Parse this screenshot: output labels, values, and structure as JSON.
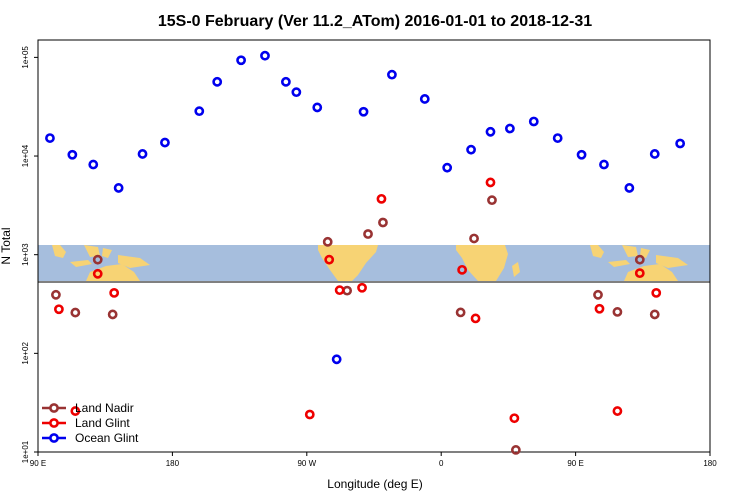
{
  "chart_data": {
    "type": "scatter",
    "title": "15S-0 February (Ver 11.2_ATom)   2016-01-01 to 2018-12-31",
    "xlabel": "Longitude (deg E)",
    "ylabel": "N Total",
    "x_ticks": [
      {
        "value": 90,
        "label": "90 E"
      },
      {
        "value": 180,
        "label": "180"
      },
      {
        "value": 270,
        "label": "90 W"
      },
      {
        "value": 360,
        "label": "0"
      },
      {
        "value": 450,
        "label": "90 E"
      },
      {
        "value": 540,
        "label": "180"
      }
    ],
    "y_ticks": [
      {
        "value": 10,
        "label": "1e+01"
      },
      {
        "value": 100,
        "label": "1e+02"
      },
      {
        "value": 1000,
        "label": "1e+03"
      },
      {
        "value": 10000,
        "label": "1e+04"
      },
      {
        "value": 100000,
        "label": "1e+05"
      }
    ],
    "xlim": [
      90,
      540
    ],
    "ylim": [
      10,
      150000
    ],
    "y_scale": "log",
    "legend_position": "bottom-left",
    "series": [
      {
        "name": "Land Nadir",
        "color": "#993333",
        "points": [
          {
            "x": 102,
            "y": 392
          },
          {
            "x": 115,
            "y": 259
          },
          {
            "x": 130,
            "y": 890
          },
          {
            "x": 140,
            "y": 248
          },
          {
            "x": 284,
            "y": 1350
          },
          {
            "x": 297,
            "y": 432
          },
          {
            "x": 311,
            "y": 1620
          },
          {
            "x": 321,
            "y": 2120
          },
          {
            "x": 373,
            "y": 260
          },
          {
            "x": 382,
            "y": 1460
          },
          {
            "x": 394,
            "y": 3570
          },
          {
            "x": 410,
            "y": 10.5
          },
          {
            "x": 465,
            "y": 392
          },
          {
            "x": 478,
            "y": 263
          },
          {
            "x": 493,
            "y": 890
          },
          {
            "x": 503,
            "y": 248
          }
        ]
      },
      {
        "name": "Land Glint",
        "color": "#ee0000",
        "points": [
          {
            "x": 104,
            "y": 280
          },
          {
            "x": 115,
            "y": 26
          },
          {
            "x": 130,
            "y": 640
          },
          {
            "x": 141,
            "y": 410
          },
          {
            "x": 272,
            "y": 24
          },
          {
            "x": 285,
            "y": 890
          },
          {
            "x": 292,
            "y": 437
          },
          {
            "x": 307,
            "y": 462
          },
          {
            "x": 320,
            "y": 3680
          },
          {
            "x": 374,
            "y": 702
          },
          {
            "x": 393,
            "y": 5400
          },
          {
            "x": 383,
            "y": 226
          },
          {
            "x": 409,
            "y": 22
          },
          {
            "x": 466,
            "y": 283
          },
          {
            "x": 478,
            "y": 26
          },
          {
            "x": 493,
            "y": 650
          },
          {
            "x": 504,
            "y": 410
          }
        ]
      },
      {
        "name": "Ocean Glint",
        "color": "#0000ee",
        "points": [
          {
            "x": 98,
            "y": 15200
          },
          {
            "x": 113,
            "y": 10300
          },
          {
            "x": 127,
            "y": 8200
          },
          {
            "x": 144,
            "y": 4750
          },
          {
            "x": 160,
            "y": 10500
          },
          {
            "x": 175,
            "y": 13700
          },
          {
            "x": 198,
            "y": 28500
          },
          {
            "x": 210,
            "y": 56500
          },
          {
            "x": 226,
            "y": 93500
          },
          {
            "x": 242,
            "y": 104000
          },
          {
            "x": 256,
            "y": 56500
          },
          {
            "x": 263,
            "y": 44400
          },
          {
            "x": 277,
            "y": 31100
          },
          {
            "x": 290,
            "y": 87
          },
          {
            "x": 308,
            "y": 28100
          },
          {
            "x": 327,
            "y": 66800
          },
          {
            "x": 349,
            "y": 37900
          },
          {
            "x": 364,
            "y": 7620
          },
          {
            "x": 380,
            "y": 11600
          },
          {
            "x": 393,
            "y": 17600
          },
          {
            "x": 406,
            "y": 19000
          },
          {
            "x": 422,
            "y": 22400
          },
          {
            "x": 438,
            "y": 15200
          },
          {
            "x": 454,
            "y": 10300
          },
          {
            "x": 469,
            "y": 8200
          },
          {
            "x": 486,
            "y": 4750
          },
          {
            "x": 503,
            "y": 10500
          },
          {
            "x": 520,
            "y": 13400
          }
        ]
      }
    ]
  }
}
